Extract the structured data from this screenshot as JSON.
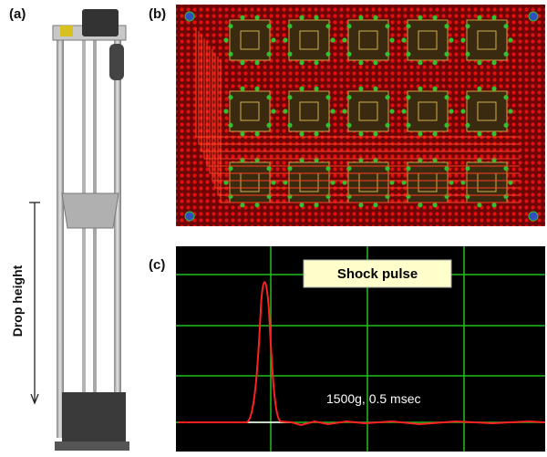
{
  "panels": [
    {
      "label": "(a)",
      "annotation": "Drop height"
    },
    {
      "label": "(b)"
    },
    {
      "label": "(c)",
      "title": "Shock pulse",
      "annotation": "1500g, 0.5 msec"
    }
  ]
}
